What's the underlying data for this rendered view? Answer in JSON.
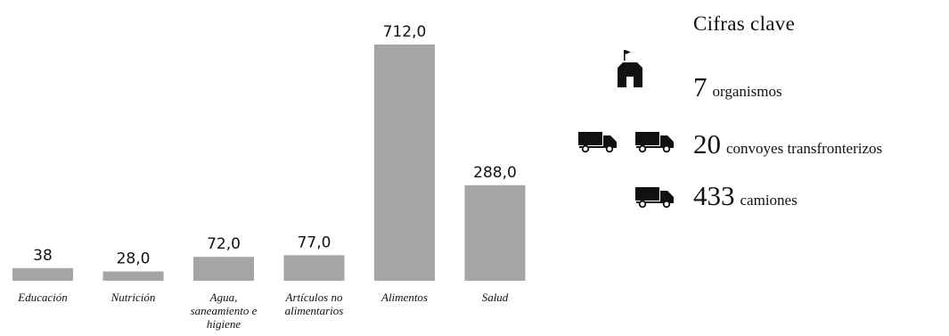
{
  "chart_data": {
    "type": "bar",
    "categories": [
      "Educación",
      "Nutrición",
      "Agua, saneamiento e higiene",
      "Artículos no alimentarios",
      "Alimentos",
      "Salud"
    ],
    "category_lines": [
      [
        "Educación"
      ],
      [
        "Nutrición"
      ],
      [
        "Agua,",
        "saneamiento e",
        "higiene"
      ],
      [
        "Artículos no",
        "alimentarios"
      ],
      [
        "Alimentos"
      ],
      [
        "Salud"
      ]
    ],
    "values": [
      38,
      28,
      72,
      77,
      712,
      288
    ],
    "value_labels": [
      "38",
      "28,0",
      "72,0",
      "77,0",
      "712,0",
      "288,0"
    ],
    "ylim": [
      0,
      712
    ],
    "grid": false,
    "bar_color": "#a5a5a5"
  },
  "key_figures": {
    "title": "Cifras clave",
    "items": [
      {
        "number": "7",
        "label": "organismos",
        "icon": "organization-icon"
      },
      {
        "number": "20",
        "label": "convoyes transfronterizos",
        "icon": "truck-icon"
      },
      {
        "number": "433",
        "label": "camiones",
        "icon": "truck-icon"
      }
    ]
  }
}
